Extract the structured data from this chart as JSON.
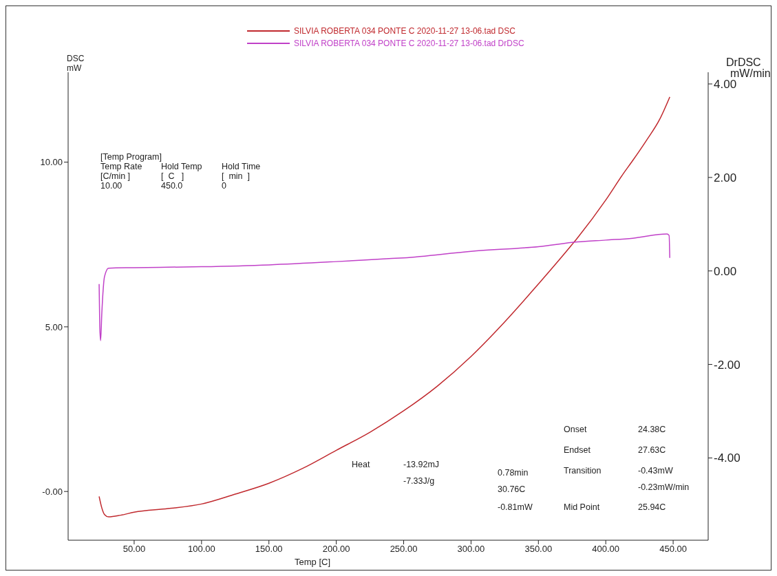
{
  "chart_data": {
    "type": "line",
    "xlabel": "Temp [C]",
    "ylabel": "DSC\nmW",
    "y2label": "DrDSC\nmW/min",
    "xlim": [
      1,
      476
    ],
    "ylim": [
      -1.48,
      12.73
    ],
    "y2lim": [
      -5.76,
      4.25
    ],
    "xticks": [
      {
        "value": 50,
        "label": "50.00"
      },
      {
        "value": 100,
        "label": "100.00"
      },
      {
        "value": 150,
        "label": "150.00"
      },
      {
        "value": 200,
        "label": "200.00"
      },
      {
        "value": 250,
        "label": "250.00"
      },
      {
        "value": 300,
        "label": "300.00"
      },
      {
        "value": 350,
        "label": "350.00"
      },
      {
        "value": 400,
        "label": "400.00"
      },
      {
        "value": 450,
        "label": "450.00"
      }
    ],
    "yticks": [
      {
        "value": 0,
        "label": "-0.00"
      },
      {
        "value": 5,
        "label": "5.00"
      },
      {
        "value": 10,
        "label": "10.00"
      }
    ],
    "y2ticks": [
      {
        "value": -4,
        "label": "-4.00"
      },
      {
        "value": -2,
        "label": "-2.00"
      },
      {
        "value": 0,
        "label": "0.00"
      },
      {
        "value": 2,
        "label": "2.00"
      },
      {
        "value": 4,
        "label": "4.00"
      }
    ],
    "legend": "top",
    "marker": "none",
    "line_style": "solid",
    "series": [
      {
        "name": "SILVIA ROBERTA 034 PONTE C 2020-11-27 13-06.tad  DSC",
        "color": "#c0282d",
        "x": [
          24,
          26,
          28,
          31,
          40,
          50,
          75,
          100,
          125,
          150,
          175,
          200,
          225,
          250,
          275,
          300,
          325,
          350,
          375,
          379,
          400,
          413,
          420,
          430,
          440,
          447.5
        ],
        "values": [
          -0.15,
          -0.5,
          -0.7,
          -0.77,
          -0.72,
          -0.63,
          -0.52,
          -0.38,
          -0.08,
          0.25,
          0.7,
          1.25,
          1.8,
          2.45,
          3.2,
          4.1,
          5.15,
          6.3,
          7.5,
          7.7,
          8.85,
          9.65,
          10.05,
          10.65,
          11.3,
          11.98
        ]
      },
      {
        "name": "SILVIA ROBERTA 034 PONTE C 2020-11-27 13-06.tad  DrDSC",
        "color": "#c040c8",
        "axis": "y2",
        "x": [
          24,
          24.5,
          25.1,
          26,
          28,
          31,
          50,
          100,
          150,
          200,
          237,
          250,
          300,
          350,
          379,
          400,
          420,
          445.4,
          447,
          447.5
        ],
        "values": [
          -0.28,
          -1.2,
          -1.49,
          -0.9,
          -0.12,
          0.06,
          0.07,
          0.09,
          0.13,
          0.2,
          0.26,
          0.28,
          0.42,
          0.52,
          0.62,
          0.66,
          0.7,
          0.79,
          0.76,
          0.28
        ]
      }
    ],
    "annotations": [
      "[Temp Program]",
      "Temp Rate",
      "Hold Temp",
      "Hold Time",
      "[C/min ]",
      "[  C   ]",
      "[  min  ]",
      "10.00",
      "450.0",
      "0",
      "Heat",
      "-13.92mJ",
      "-7.33J/g",
      "0.78min",
      "30.76C",
      "-0.81mW",
      "Onset",
      "24.38C",
      "Endset",
      "27.63C",
      "Transition",
      "-0.43mW",
      "-0.23mW/min",
      "Mid Point",
      "25.94C"
    ]
  }
}
